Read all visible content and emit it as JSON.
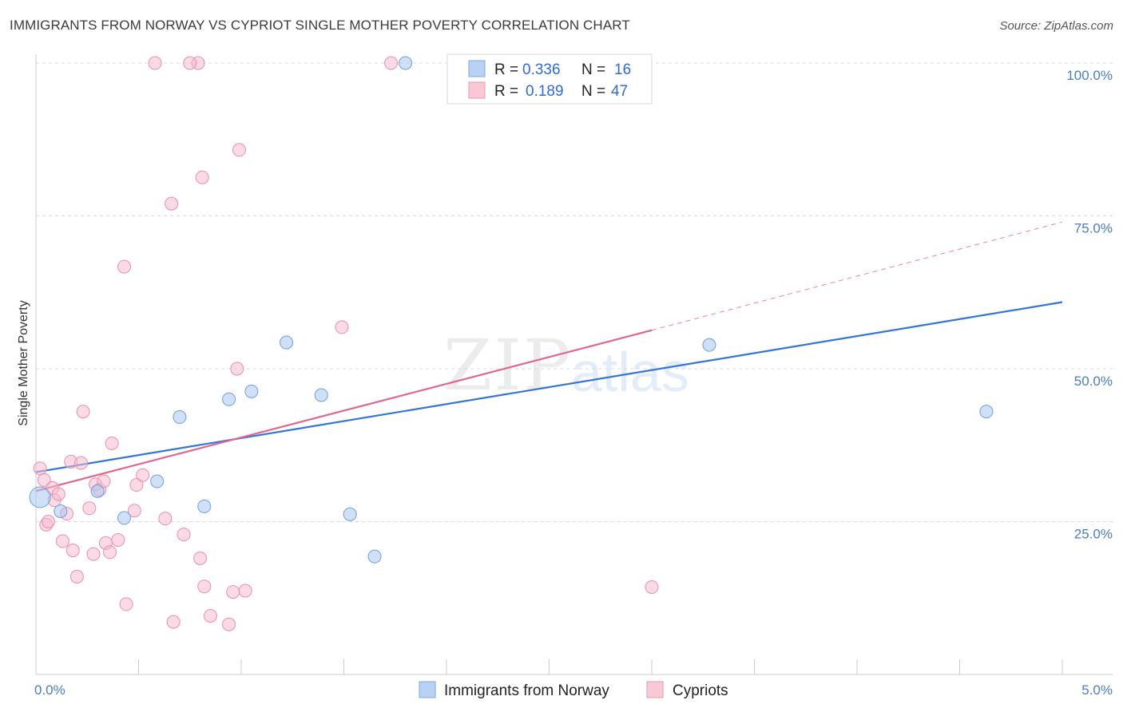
{
  "title": "IMMIGRANTS FROM NORWAY VS CYPRIOT SINGLE MOTHER POVERTY CORRELATION CHART",
  "source": "Source: ZipAtlas.com",
  "watermark": {
    "zip": "ZIP",
    "atlas": "atlas"
  },
  "legend_top": {
    "rows": [
      {
        "r_label": "R =",
        "r_value": "0.336",
        "n_label": "N =",
        "n_value": "16"
      },
      {
        "r_label": "R =",
        "r_value": "0.189",
        "n_label": "N =",
        "n_value": "47"
      }
    ]
  },
  "legend_bottom": [
    "Immigrants from Norway",
    "Cypriots"
  ],
  "chart_data": {
    "type": "scatter",
    "title": "IMMIGRANTS FROM NORWAY VS CYPRIOT SINGLE MOTHER POVERTY CORRELATION CHART",
    "xlabel": "",
    "ylabel": "Single Mother Poverty",
    "xlim": [
      0,
      5
    ],
    "ylim": [
      0,
      100
    ],
    "x_ticks": [
      {
        "value": 0,
        "label": "0.0%"
      },
      {
        "value": 5,
        "label": "5.0%"
      }
    ],
    "y_ticks": [
      {
        "value": 25,
        "label": "25.0%"
      },
      {
        "value": 50,
        "label": "50.0%"
      },
      {
        "value": 75,
        "label": "75.0%"
      },
      {
        "value": 100,
        "label": "100.0%"
      }
    ],
    "grid": "horizontal dashed",
    "legend_position": "top-center",
    "series": [
      {
        "name": "Immigrants from Norway",
        "color": "#a9c7ef",
        "stroke": "#6f9fe0",
        "line_color": "#3375d6",
        "R": 0.336,
        "N": 16,
        "trend": {
          "x0": 0,
          "y0": 33.1,
          "x1": 5,
          "y1": 60.9
        },
        "points": [
          [
            0.02,
            29.0
          ],
          [
            0.12,
            26.7
          ],
          [
            0.3,
            30.0
          ],
          [
            0.43,
            25.6
          ],
          [
            0.59,
            31.6
          ],
          [
            0.7,
            42.1
          ],
          [
            0.82,
            27.5
          ],
          [
            0.94,
            45.0
          ],
          [
            1.05,
            46.3
          ],
          [
            1.22,
            54.3
          ],
          [
            1.39,
            45.7
          ],
          [
            1.53,
            26.2
          ],
          [
            1.65,
            19.3
          ],
          [
            1.8,
            100.0
          ],
          [
            3.28,
            53.9
          ],
          [
            4.63,
            43.0
          ]
        ]
      },
      {
        "name": "Cypriots",
        "color": "#f5bccd",
        "stroke": "#e890aa",
        "line_color": "#e0668f",
        "R": 0.189,
        "N": 47,
        "trend": {
          "x0": 0,
          "y0": 30.0,
          "x1": 3.0,
          "y1": 56.3
        },
        "trend_dashed": {
          "x0": 3.0,
          "y0": 56.3,
          "x1": 5,
          "y1": 74.0
        },
        "points": [
          [
            0.02,
            33.7
          ],
          [
            0.04,
            31.8
          ],
          [
            0.05,
            24.5
          ],
          [
            0.06,
            25.0
          ],
          [
            0.08,
            30.5
          ],
          [
            0.09,
            28.5
          ],
          [
            0.11,
            29.5
          ],
          [
            0.13,
            21.8
          ],
          [
            0.15,
            26.3
          ],
          [
            0.17,
            34.8
          ],
          [
            0.18,
            20.3
          ],
          [
            0.2,
            16.0
          ],
          [
            0.22,
            34.6
          ],
          [
            0.23,
            43.0
          ],
          [
            0.26,
            27.2
          ],
          [
            0.28,
            19.7
          ],
          [
            0.29,
            31.1
          ],
          [
            0.31,
            30.2
          ],
          [
            0.33,
            31.6
          ],
          [
            0.34,
            21.5
          ],
          [
            0.36,
            20.0
          ],
          [
            0.37,
            37.8
          ],
          [
            0.4,
            22.0
          ],
          [
            0.43,
            66.7
          ],
          [
            0.44,
            11.5
          ],
          [
            0.48,
            26.8
          ],
          [
            0.49,
            31.0
          ],
          [
            0.52,
            32.6
          ],
          [
            0.58,
            100.0
          ],
          [
            0.63,
            25.5
          ],
          [
            0.66,
            77.0
          ],
          [
            0.67,
            8.6
          ],
          [
            0.72,
            22.9
          ],
          [
            0.79,
            100.0
          ],
          [
            0.8,
            19.0
          ],
          [
            0.81,
            81.3
          ],
          [
            0.82,
            14.4
          ],
          [
            0.85,
            9.6
          ],
          [
            0.94,
            8.2
          ],
          [
            0.96,
            13.5
          ],
          [
            0.98,
            50.0
          ],
          [
            0.99,
            85.8
          ],
          [
            1.02,
            13.7
          ],
          [
            1.49,
            56.8
          ],
          [
            1.73,
            100.0
          ],
          [
            3.0,
            14.3
          ],
          [
            0.75,
            100.0
          ]
        ]
      }
    ]
  }
}
